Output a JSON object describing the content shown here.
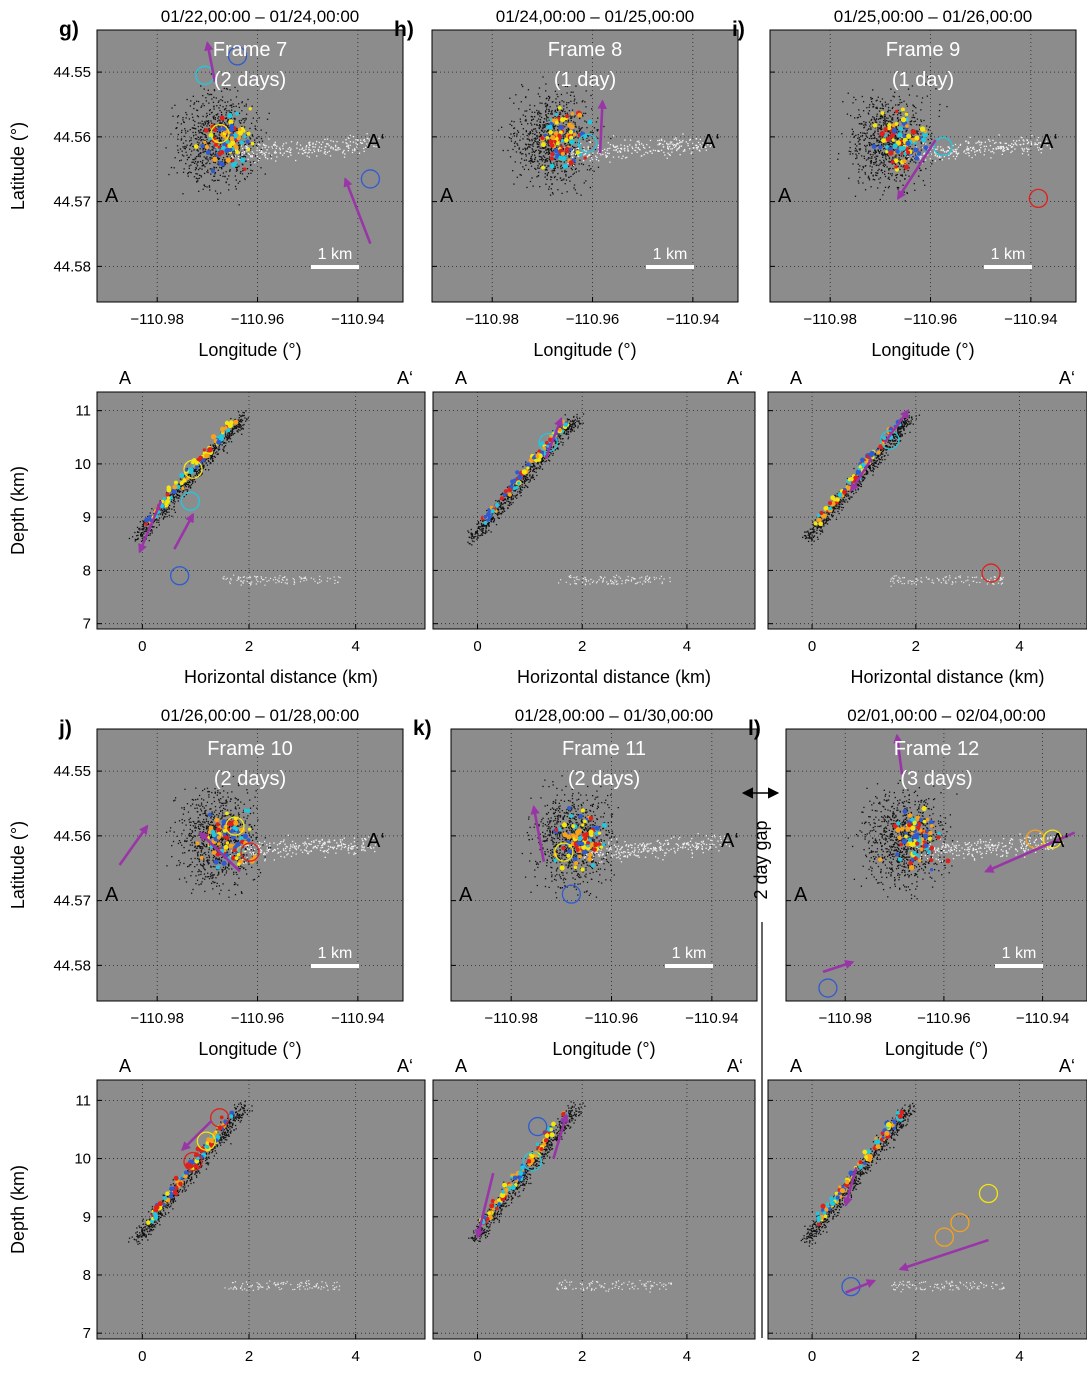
{
  "figure": {
    "xlabel_map": "Longitude (°)",
    "ylabel_map": "Latitude (°)",
    "xlabel_depth": "Horizontal distance (km)",
    "ylabel_depth": "Depth (km)",
    "map_x_ticks": [
      "−110.98",
      "−110.96",
      "−110.94"
    ],
    "map_y_ticks": [
      "44.58",
      "44.57",
      "44.56",
      "44.55"
    ],
    "depth_x_ticks": [
      "0",
      "2",
      "4"
    ],
    "depth_y_ticks": [
      "7",
      "8",
      "9",
      "10",
      "11"
    ],
    "point_a": "A",
    "point_a_prime": "A‘",
    "scale_bar": "1 km",
    "gap_label": "2 day gap",
    "colors": {
      "panel_bg": "#8c8c8c",
      "arrow": "#9a35a8",
      "event_colors": [
        "#2f5bd1",
        "#1ec8e0",
        "#f3e60c",
        "#f7a21b",
        "#e0201b",
        "#1c1c1c",
        "#ffffff"
      ]
    }
  },
  "panels": [
    {
      "id": "g",
      "letter": "g)",
      "time": "01/22,00:00 – 01/24,00:00",
      "frame": "Frame 7",
      "duration": "(2 days)"
    },
    {
      "id": "h",
      "letter": "h)",
      "time": "01/24,00:00 – 01/25,00:00",
      "frame": "Frame 8",
      "duration": "(1 day)"
    },
    {
      "id": "i",
      "letter": "i)",
      "time": "01/25,00:00 – 01/26,00:00",
      "frame": "Frame 9",
      "duration": "(1 day)"
    },
    {
      "id": "j",
      "letter": "j)",
      "time": "01/26,00:00 – 01/28,00:00",
      "frame": "Frame 10",
      "duration": "(2 days)"
    },
    {
      "id": "k",
      "letter": "k)",
      "time": "01/28,00:00 – 01/30,00:00",
      "frame": "Frame 11",
      "duration": "(2 days)"
    },
    {
      "id": "l",
      "letter": "l)",
      "time": "02/01,00:00 – 02/04,00:00",
      "frame": "Frame 12",
      "duration": "(3 days)"
    }
  ],
  "chart_data": [
    {
      "type": "scatter",
      "panel": "g",
      "view": "map",
      "xlabel": "Longitude (°)",
      "ylabel": "Latitude (°)",
      "xlim": [
        -110.992,
        -110.931
      ],
      "ylim": [
        44.5435,
        44.5855
      ],
      "arrows": [
        {
          "from": [
            -110.9375,
            44.5765
          ],
          "to": [
            -110.9425,
            44.5665
          ]
        },
        {
          "from": [
            -110.9685,
            44.5515
          ],
          "to": [
            -110.97,
            44.5455
          ]
        }
      ],
      "circles": [
        {
          "x": -110.9675,
          "y": 44.5595,
          "color": "#f3e60c"
        },
        {
          "x": -110.964,
          "y": 44.5475,
          "color": "#2f5bd1"
        },
        {
          "x": -110.9705,
          "y": 44.5505,
          "color": "#1ec8e0"
        },
        {
          "x": -110.9375,
          "y": 44.5665,
          "color": "#2f5bd1"
        }
      ]
    },
    {
      "type": "scatter",
      "panel": "h",
      "view": "map",
      "xlabel": "Longitude (°)",
      "ylabel": "Latitude (°)",
      "xlim": [
        -110.992,
        -110.931
      ],
      "ylim": [
        44.5435,
        44.5855
      ],
      "arrows": [
        {
          "from": [
            -110.9585,
            44.5625
          ],
          "to": [
            -110.958,
            44.5545
          ]
        }
      ],
      "circles": [
        {
          "x": -110.961,
          "y": 44.561,
          "color": "#1ec8e0"
        }
      ]
    },
    {
      "type": "scatter",
      "panel": "i",
      "view": "map",
      "xlabel": "Longitude (°)",
      "ylabel": "Latitude (°)",
      "xlim": [
        -110.992,
        -110.931
      ],
      "ylim": [
        44.5435,
        44.5855
      ],
      "arrows": [
        {
          "from": [
            -110.959,
            44.5605
          ],
          "to": [
            -110.9665,
            44.5695
          ]
        }
      ],
      "circles": [
        {
          "x": -110.9575,
          "y": 44.5615,
          "color": "#1ec8e0"
        },
        {
          "x": -110.9385,
          "y": 44.5695,
          "color": "#e0201b"
        }
      ]
    },
    {
      "type": "scatter",
      "panel": "j",
      "view": "map",
      "xlabel": "Longitude (°)",
      "ylabel": "Latitude (°)",
      "xlim": [
        -110.992,
        -110.931
      ],
      "ylim": [
        44.5435,
        44.5855
      ],
      "arrows": [
        {
          "from": [
            -110.9875,
            44.5645
          ],
          "to": [
            -110.982,
            44.5585
          ]
        },
        {
          "from": [
            -110.9635,
            44.5655
          ],
          "to": [
            -110.9715,
            44.5595
          ]
        }
      ],
      "circles": [
        {
          "x": -110.9615,
          "y": 44.5625,
          "color": "#e0201b"
        },
        {
          "x": -110.9645,
          "y": 44.5585,
          "color": "#f3e60c"
        }
      ]
    },
    {
      "type": "scatter",
      "panel": "k",
      "view": "map",
      "xlabel": "Longitude (°)",
      "ylabel": "Latitude (°)",
      "xlim": [
        -110.992,
        -110.931
      ],
      "ylim": [
        44.5435,
        44.5855
      ],
      "arrows": [
        {
          "from": [
            -110.9735,
            44.564
          ],
          "to": [
            -110.9755,
            44.5555
          ]
        }
      ],
      "circles": [
        {
          "x": -110.968,
          "y": 44.569,
          "color": "#2f5bd1"
        },
        {
          "x": -110.9695,
          "y": 44.5625,
          "color": "#f3e60c"
        }
      ]
    },
    {
      "type": "scatter",
      "panel": "l",
      "view": "map",
      "xlabel": "Longitude (°)",
      "ylabel": "Latitude (°)",
      "xlim": [
        -110.992,
        -110.931
      ],
      "ylim": [
        44.5435,
        44.5855
      ],
      "arrows": [
        {
          "from": [
            -110.9335,
            44.5595
          ],
          "to": [
            -110.9515,
            44.5655
          ]
        },
        {
          "from": [
            -110.9845,
            44.581
          ],
          "to": [
            -110.9785,
            44.5795
          ]
        },
        {
          "from": [
            -110.9685,
            44.5505
          ],
          "to": [
            -110.9695,
            44.5445
          ]
        }
      ],
      "circles": [
        {
          "x": -110.9835,
          "y": 44.5835,
          "color": "#2f5bd1"
        },
        {
          "x": -110.9415,
          "y": 44.5605,
          "color": "#f7a21b"
        },
        {
          "x": -110.938,
          "y": 44.5605,
          "color": "#f3e60c"
        }
      ]
    },
    {
      "type": "scatter",
      "panel": "g",
      "view": "depth",
      "xlabel": "Horizontal distance (km)",
      "ylabel": "Depth (km)",
      "xlim": [
        -0.85,
        5.3
      ],
      "ylim": [
        11.35,
        6.9
      ],
      "arrows": [
        {
          "from": [
            0.35,
            9.3
          ],
          "to": [
            -0.05,
            8.35
          ]
        },
        {
          "from": [
            0.6,
            8.4
          ],
          "to": [
            0.95,
            9.05
          ]
        }
      ],
      "circles": [
        {
          "x": 0.7,
          "y": 7.9,
          "color": "#2f5bd1"
        },
        {
          "x": 0.9,
          "y": 9.3,
          "color": "#1ec8e0"
        },
        {
          "x": 0.95,
          "y": 9.9,
          "color": "#f3e60c"
        }
      ]
    },
    {
      "type": "scatter",
      "panel": "h",
      "view": "depth",
      "xlabel": "Horizontal distance (km)",
      "ylabel": "Depth (km)",
      "xlim": [
        -0.85,
        5.3
      ],
      "ylim": [
        11.35,
        6.9
      ],
      "arrows": [
        {
          "from": [
            1.3,
            10.1
          ],
          "to": [
            1.6,
            10.85
          ]
        }
      ],
      "circles": [
        {
          "x": 1.35,
          "y": 10.4,
          "color": "#1ec8e0"
        }
      ]
    },
    {
      "type": "scatter",
      "panel": "i",
      "view": "depth",
      "xlabel": "Horizontal distance (km)",
      "ylabel": "Depth (km)",
      "xlim": [
        -0.85,
        5.3
      ],
      "ylim": [
        11.35,
        6.9
      ],
      "arrows": [
        {
          "from": [
            1.15,
            10.1
          ],
          "to": [
            0.75,
            9.5
          ]
        },
        {
          "from": [
            1.4,
            10.4
          ],
          "to": [
            1.85,
            11.0
          ]
        }
      ],
      "circles": [
        {
          "x": 1.5,
          "y": 10.45,
          "color": "#1ec8e0"
        },
        {
          "x": 3.45,
          "y": 7.95,
          "color": "#e0201b"
        }
      ]
    },
    {
      "type": "scatter",
      "panel": "j",
      "view": "depth",
      "xlabel": "Horizontal distance (km)",
      "ylabel": "Depth (km)",
      "xlim": [
        -0.85,
        5.3
      ],
      "ylim": [
        11.35,
        6.9
      ],
      "arrows": [
        {
          "from": [
            1.3,
            10.65
          ],
          "to": [
            0.75,
            10.15
          ]
        }
      ],
      "circles": [
        {
          "x": 1.45,
          "y": 10.7,
          "color": "#e0201b"
        },
        {
          "x": 0.95,
          "y": 9.95,
          "color": "#e0201b"
        },
        {
          "x": 1.2,
          "y": 10.3,
          "color": "#f3e60c"
        }
      ]
    },
    {
      "type": "scatter",
      "panel": "k",
      "view": "depth",
      "xlabel": "Horizontal distance (km)",
      "ylabel": "Depth (km)",
      "xlim": [
        -0.85,
        5.3
      ],
      "ylim": [
        11.35,
        6.9
      ],
      "arrows": [
        {
          "from": [
            0.3,
            9.75
          ],
          "to": [
            0.0,
            8.65
          ]
        },
        {
          "from": [
            1.45,
            10.0
          ],
          "to": [
            1.7,
            10.75
          ]
        }
      ],
      "circles": [
        {
          "x": 1.15,
          "y": 10.55,
          "color": "#2f5bd1"
        },
        {
          "x": 1.05,
          "y": 9.95,
          "color": "#1ec8e0"
        }
      ]
    },
    {
      "type": "scatter",
      "panel": "l",
      "view": "depth",
      "xlabel": "Horizontal distance (km)",
      "ylabel": "Depth (km)",
      "xlim": [
        -0.85,
        5.3
      ],
      "ylim": [
        11.35,
        6.9
      ],
      "arrows": [
        {
          "from": [
            3.4,
            8.6
          ],
          "to": [
            1.7,
            8.1
          ]
        },
        {
          "from": [
            0.65,
            7.7
          ],
          "to": [
            1.2,
            7.9
          ]
        },
        {
          "from": [
            0.85,
            9.85
          ],
          "to": [
            0.65,
            9.2
          ]
        }
      ],
      "circles": [
        {
          "x": 0.75,
          "y": 7.8,
          "color": "#2f5bd1"
        },
        {
          "x": 2.85,
          "y": 8.9,
          "color": "#f7a21b"
        },
        {
          "x": 3.4,
          "y": 9.4,
          "color": "#f3e60c"
        },
        {
          "x": 2.55,
          "y": 8.65,
          "color": "#f7a21b"
        }
      ]
    }
  ]
}
